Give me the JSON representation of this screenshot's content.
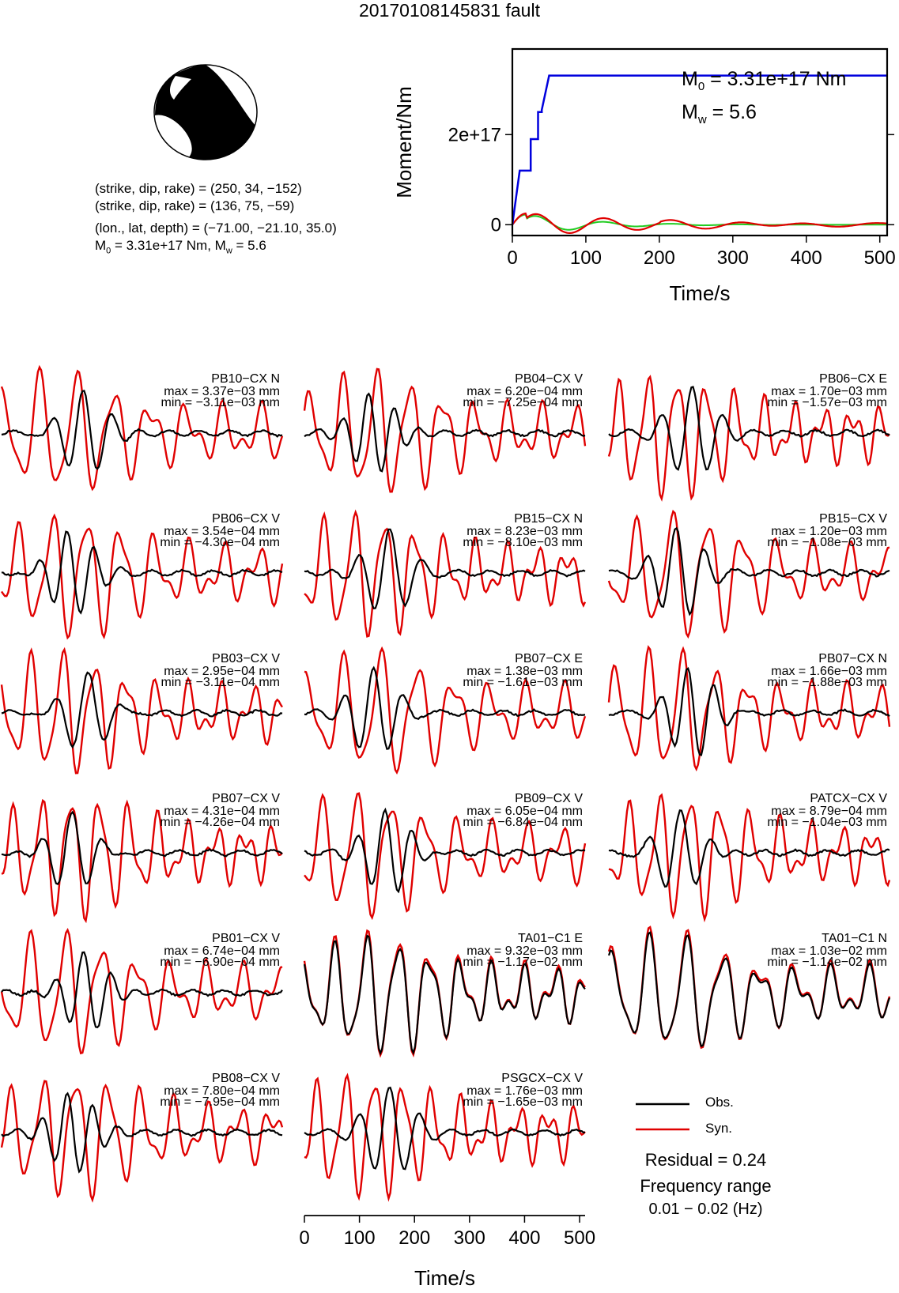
{
  "title": "20170108145831 fault",
  "solution": {
    "plane1": "(strike, dip, rake) = (250, 34, −152)",
    "plane2": "(strike, dip, rake) = (136, 75, −59)",
    "location": "(lon., lat, depth) = (−71.00, −21.10, 35.0)",
    "moment_text": "M₀ = 3.31e+17 Nm, Mᵥ = 5.6",
    "m0_label": "M",
    "m0_sub": "0",
    "m0_value": " = 3.31e+17 Nm",
    "mw_label": "M",
    "mw_sub": "w",
    "mw_value": " = 5.6",
    "summary_value": " = 3.31e+17 Nm, M",
    "summary_mw": " = 5.6"
  },
  "legend": {
    "obs": "Obs.",
    "syn": "Syn.",
    "residual": "Residual = 0.24",
    "freq_label": "Frequency range",
    "freq_value": "0.01 − 0.02 (Hz)"
  },
  "colors": {
    "obs": "#000000",
    "syn": "#e00000",
    "moment": "#0000dd",
    "rate_green": "#22cc22"
  },
  "chart_data": [
    {
      "type": "line",
      "xlabel": "Time/s",
      "ylabel": "Moment/Nm",
      "xlim": [
        0,
        510
      ],
      "ylim": [
        -2.4e+16,
        3.9e+17
      ],
      "xticks": [
        0,
        100,
        200,
        300,
        400,
        500
      ],
      "yticks": [
        {
          "v": 0,
          "label": "0"
        },
        {
          "v": 2e+17,
          "label": "2e+17"
        }
      ],
      "series": [
        {
          "color": "#0000dd",
          "x": [
            0,
            10,
            10,
            25,
            25,
            35,
            35,
            40,
            40,
            50,
            50,
            510
          ],
          "y": [
            0,
            1.2e+17,
            1.2e+17,
            1.2e+17,
            1.9e+17,
            1.9e+17,
            2.5e+17,
            2.5e+17,
            2.55e+17,
            3.31e+17,
            3.31e+17,
            3.31e+17
          ]
        }
      ]
    },
    {
      "type": "line",
      "note_units": "mm",
      "xlim": [
        0,
        510
      ],
      "xticks": [
        0,
        100,
        200,
        300,
        400,
        500
      ],
      "xlabel": "Time/s",
      "stations": [
        {
          "name": "PB10−CX N",
          "max": "max = 3.37e−03 mm",
          "min": "min = −3.11e−03 mm"
        },
        {
          "name": "PB04−CX V",
          "max": "max = 6.20e−04 mm",
          "min": "min = −7.25e−04 mm"
        },
        {
          "name": "PB06−CX E",
          "max": "max = 1.70e−03 mm",
          "min": "min = −1.57e−03 mm"
        },
        {
          "name": "PB06−CX V",
          "max": "max = 3.54e−04 mm",
          "min": "min = −4.30e−04 mm"
        },
        {
          "name": "PB15−CX N",
          "max": "max = 8.23e−03 mm",
          "min": "min = −8.10e−03 mm"
        },
        {
          "name": "PB15−CX V",
          "max": "max = 1.20e−03 mm",
          "min": "min = −1.08e−03 mm"
        },
        {
          "name": "PB03−CX V",
          "max": "max = 2.95e−04 mm",
          "min": "min = −3.11e−04 mm"
        },
        {
          "name": "PB07−CX E",
          "max": "max = 1.38e−03 mm",
          "min": "min = −1.61e−03 mm"
        },
        {
          "name": "PB07−CX N",
          "max": "max = 1.66e−03 mm",
          "min": "min = −1.88e−03 mm"
        },
        {
          "name": "PB07−CX V",
          "max": "max = 4.31e−04 mm",
          "min": "min = −4.26e−04 mm"
        },
        {
          "name": "PB09−CX V",
          "max": "max = 6.05e−04 mm",
          "min": "min = −6.84e−04 mm"
        },
        {
          "name": "PATCX−CX V",
          "max": "max = 8.79e−04 mm",
          "min": "min = −1.04e−03 mm"
        },
        {
          "name": "PB01−CX V",
          "max": "max = 6.74e−04 mm",
          "min": "min = −6.90e−04 mm"
        },
        {
          "name": "TA01−C1 E",
          "max": "max = 9.32e−03 mm",
          "min": "min = −1.17e−02 mm"
        },
        {
          "name": "TA01−C1 N",
          "max": "max = 1.03e−02 mm",
          "min": "min = −1.14e−02 mm"
        },
        {
          "name": "PB08−CX V",
          "max": "max = 7.80e−04 mm",
          "min": "min = −7.95e−04 mm"
        },
        {
          "name": "PSGCX−CX V",
          "max": "max = 1.76e−03 mm",
          "min": "min = −1.65e−03 mm"
        }
      ]
    }
  ]
}
